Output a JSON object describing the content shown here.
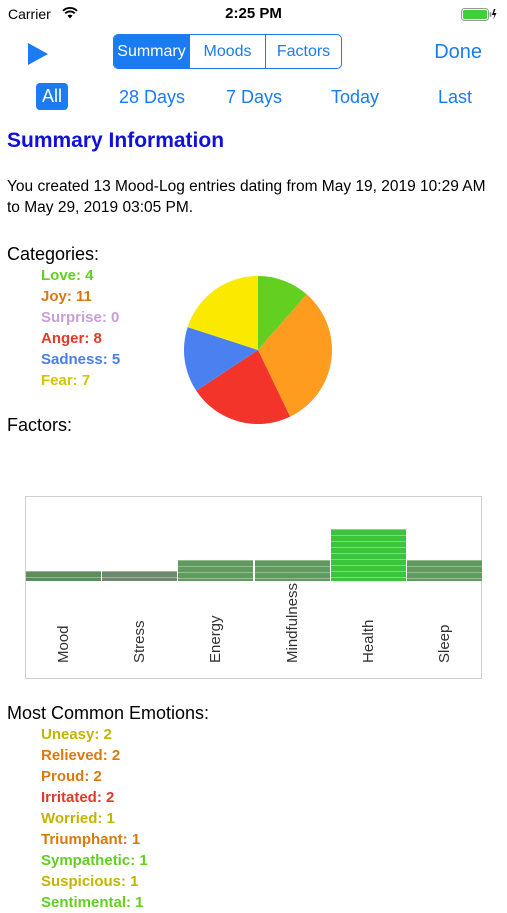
{
  "status_bar": {
    "carrier": "Carrier",
    "time": "2:25 PM"
  },
  "toolbar": {
    "segments": [
      "Summary",
      "Moods",
      "Factors"
    ],
    "active_segment": "Summary",
    "done_label": "Done"
  },
  "range_tabs": [
    "All",
    "28 Days",
    "7 Days",
    "Today",
    "Last"
  ],
  "active_range": "All",
  "summary": {
    "title": "Summary Information",
    "text": "You created 13 Mood-Log entries dating from May 19, 2019 10:29 AM to May 29, 2019 03:05 PM."
  },
  "categories": {
    "heading": "Categories:",
    "items": [
      {
        "label": "Love: 4",
        "color": "#63cf21"
      },
      {
        "label": "Joy: 11",
        "color": "#d97a10"
      },
      {
        "label": "Surprise: 0",
        "color": "#c8a0d8"
      },
      {
        "label": "Anger: 8",
        "color": "#e23a2a"
      },
      {
        "label": "Sadness: 5",
        "color": "#4a7ee8"
      },
      {
        "label": "Fear: 7",
        "color": "#d6c400"
      }
    ]
  },
  "chart_data": [
    {
      "type": "pie",
      "title": "",
      "labels": [
        "Love",
        "Joy",
        "Surprise",
        "Anger",
        "Sadness",
        "Fear"
      ],
      "values": [
        4,
        11,
        0,
        8,
        5,
        7
      ],
      "colors": [
        "#63cf21",
        "#fd9c1f",
        "#c8a0d8",
        "#f2342a",
        "#4b80f0",
        "#fbe900"
      ]
    },
    {
      "type": "bar",
      "title": "",
      "categories": [
        "Mood",
        "Stress",
        "Energy",
        "Mindfulness",
        "Health",
        "Sleep"
      ],
      "values": [
        1,
        1,
        2,
        2,
        5,
        2
      ],
      "ylim": [
        -4,
        9
      ],
      "colors": [
        "#5e8c5e",
        "#6e8a6e",
        "#5f9a5f",
        "#5f9a5f",
        "#3dc43d",
        "#5f9a5f"
      ]
    }
  ],
  "factors": {
    "heading": "Factors:"
  },
  "emotions": {
    "heading": "Most Common Emotions:",
    "items": [
      {
        "label": "Uneasy: 2",
        "color": "#c4b400"
      },
      {
        "label": "Relieved: 2",
        "color": "#d97a10"
      },
      {
        "label": "Proud: 2",
        "color": "#d97a10"
      },
      {
        "label": "Irritated: 2",
        "color": "#e23a2a"
      },
      {
        "label": "Worried: 1",
        "color": "#c4b400"
      },
      {
        "label": "Triumphant: 1",
        "color": "#d97a10"
      },
      {
        "label": "Sympathetic: 1",
        "color": "#63cf21"
      },
      {
        "label": "Suspicious: 1",
        "color": "#c4b400"
      },
      {
        "label": "Sentimental: 1",
        "color": "#63cf21"
      }
    ]
  }
}
